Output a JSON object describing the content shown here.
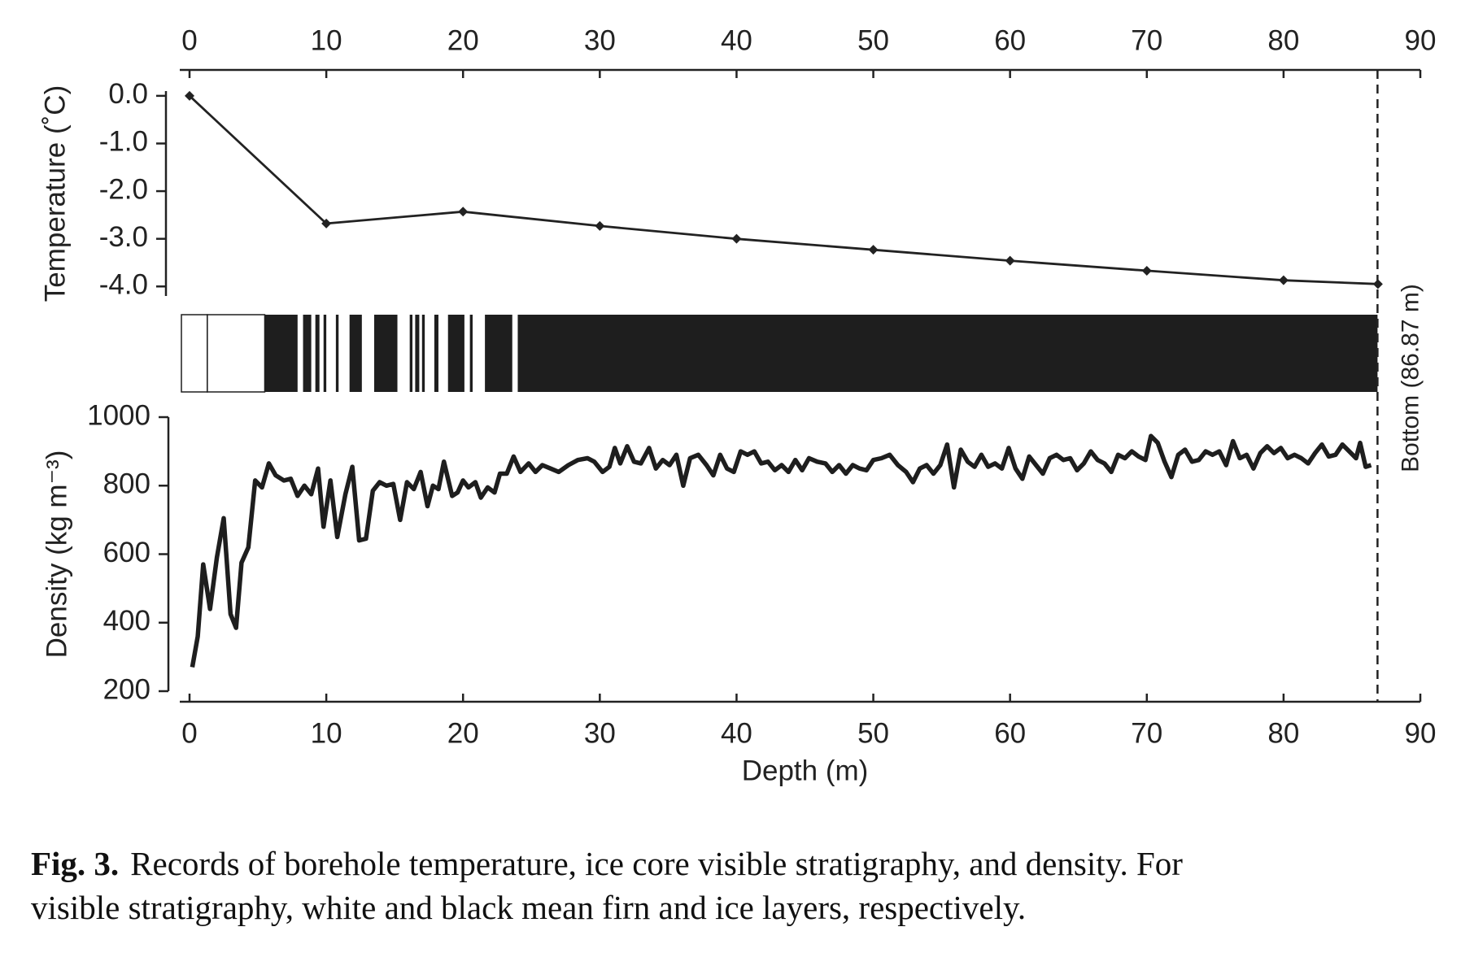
{
  "chart_data": [
    {
      "type": "line",
      "xaxis_position": "top",
      "ylabel": "Temperature (˚C)",
      "color": "#222222",
      "marker": "diamond",
      "x": [
        0,
        10,
        20,
        30,
        40,
        50,
        60,
        70,
        80,
        86.9
      ],
      "values": [
        0,
        -2.68,
        -2.43,
        -2.73,
        -3.0,
        -3.23,
        -3.46,
        -3.67,
        -3.87,
        -3.95
      ],
      "xlim": [
        0,
        90
      ],
      "xticks": [
        0,
        10,
        20,
        30,
        40,
        50,
        60,
        70,
        80,
        90
      ],
      "ylim": [
        -4.2,
        0.1
      ],
      "yticks": [
        {
          "value": 0,
          "label": "0.0"
        },
        {
          "value": -1,
          "label": "-1.0"
        },
        {
          "value": -2,
          "label": "-2.0"
        },
        {
          "value": -3,
          "label": "-3.0"
        },
        {
          "value": -4,
          "label": "-4.0"
        }
      ]
    },
    {
      "type": "strip",
      "xlim": [
        0,
        90
      ],
      "extent": [
        0,
        86.87
      ],
      "color": "#1e1e1e",
      "layer_color": "#ffffff",
      "from": [
        0,
        1.3,
        7.9,
        8.9,
        9.5,
        10.0,
        10.9,
        12.6,
        15.2,
        16.3,
        16.8,
        17.2,
        18.2,
        20.1,
        20.7,
        23.6
      ],
      "to": [
        1.3,
        5.5,
        8.3,
        9.2,
        9.8,
        10.7,
        11.7,
        13.5,
        16.1,
        16.5,
        17.0,
        17.9,
        18.9,
        20.5,
        21.6,
        24.0
      ],
      "annotation": {
        "text": "Bottom (86.87 m)",
        "x": 86.87
      }
    },
    {
      "type": "line",
      "xaxis_position": "bottom",
      "xlabel": "Depth (m)",
      "ylabel": "Density (kg m⁻³)",
      "color": "#1e1e1e",
      "x": [
        0.2,
        0.6,
        1.0,
        1.5,
        2.0,
        2.5,
        3.0,
        3.4,
        3.8,
        4.3,
        4.8,
        5.3,
        5.8,
        6.3,
        6.9,
        7.4,
        7.9,
        8.4,
        8.9,
        9.4,
        9.8,
        10.3,
        10.8,
        11.4,
        11.9,
        12.4,
        12.9,
        13.4,
        13.9,
        14.4,
        14.9,
        15.4,
        15.9,
        16.4,
        16.9,
        17.4,
        17.8,
        18.2,
        18.6,
        19.2,
        19.6,
        20.0,
        20.4,
        20.9,
        21.3,
        21.8,
        22.3,
        22.7,
        23.2,
        23.7,
        24.2,
        24.8,
        25.3,
        25.8,
        26.4,
        27.0,
        27.7,
        28.4,
        29.1,
        29.6,
        30.2,
        30.7,
        31.1,
        31.5,
        32.0,
        32.5,
        33.0,
        33.6,
        34.1,
        34.6,
        35.1,
        35.6,
        36.1,
        36.6,
        37.2,
        37.8,
        38.3,
        38.8,
        39.3,
        39.8,
        40.3,
        40.8,
        41.3,
        41.8,
        42.3,
        42.8,
        43.3,
        43.8,
        44.3,
        44.8,
        45.3,
        45.9,
        46.5,
        47.0,
        47.5,
        48.0,
        48.5,
        49.0,
        49.5,
        50.0,
        50.6,
        51.2,
        51.8,
        52.4,
        52.9,
        53.4,
        53.9,
        54.4,
        54.9,
        55.4,
        55.9,
        56.4,
        56.9,
        57.4,
        57.9,
        58.4,
        58.9,
        59.4,
        59.9,
        60.4,
        60.9,
        61.4,
        61.9,
        62.4,
        62.9,
        63.4,
        63.9,
        64.4,
        64.9,
        65.4,
        65.9,
        66.4,
        66.9,
        67.4,
        67.9,
        68.4,
        68.9,
        69.4,
        69.9,
        70.3,
        70.8,
        71.3,
        71.8,
        72.3,
        72.8,
        73.3,
        73.8,
        74.3,
        74.8,
        75.3,
        75.8,
        76.3,
        76.8,
        77.3,
        77.8,
        78.3,
        78.8,
        79.3,
        79.8,
        80.3,
        80.8,
        81.3,
        81.8,
        82.3,
        82.8,
        83.3,
        83.8,
        84.3,
        84.8,
        85.3,
        85.6,
        86.0,
        86.4
      ],
      "values": [
        270,
        360,
        570,
        440,
        590,
        705,
        425,
        385,
        575,
        620,
        815,
        795,
        865,
        830,
        815,
        820,
        770,
        800,
        775,
        850,
        680,
        815,
        650,
        775,
        855,
        640,
        645,
        785,
        810,
        800,
        805,
        700,
        810,
        790,
        840,
        740,
        800,
        790,
        870,
        770,
        780,
        815,
        795,
        810,
        765,
        795,
        780,
        835,
        835,
        885,
        840,
        865,
        840,
        860,
        850,
        840,
        860,
        875,
        880,
        870,
        840,
        855,
        910,
        865,
        915,
        870,
        865,
        910,
        850,
        875,
        860,
        890,
        800,
        880,
        890,
        860,
        830,
        890,
        850,
        840,
        900,
        890,
        900,
        865,
        870,
        845,
        860,
        840,
        875,
        845,
        880,
        870,
        865,
        840,
        860,
        835,
        860,
        850,
        845,
        875,
        880,
        890,
        860,
        840,
        810,
        850,
        860,
        835,
        860,
        920,
        795,
        905,
        870,
        855,
        890,
        855,
        865,
        850,
        910,
        850,
        820,
        885,
        860,
        835,
        880,
        890,
        875,
        880,
        845,
        865,
        900,
        875,
        865,
        840,
        890,
        880,
        900,
        885,
        875,
        945,
        925,
        870,
        825,
        890,
        905,
        870,
        875,
        900,
        890,
        900,
        860,
        930,
        880,
        890,
        850,
        895,
        915,
        895,
        910,
        880,
        890,
        880,
        865,
        895,
        920,
        885,
        890,
        920,
        900,
        880,
        925,
        855,
        860
      ],
      "xlim": [
        0,
        90
      ],
      "xticks": [
        0,
        10,
        20,
        30,
        40,
        50,
        60,
        70,
        80,
        90
      ],
      "ylim": [
        200,
        1000
      ],
      "yticks": [
        200,
        400,
        600,
        800,
        1000
      ]
    }
  ],
  "caption": {
    "label": "Fig. 3.",
    "lines": [
      "Records of borehole temperature, ice core visible stratigraphy, and density. For",
      "visible stratigraphy, white and black mean firn and ice layers, respectively."
    ]
  }
}
